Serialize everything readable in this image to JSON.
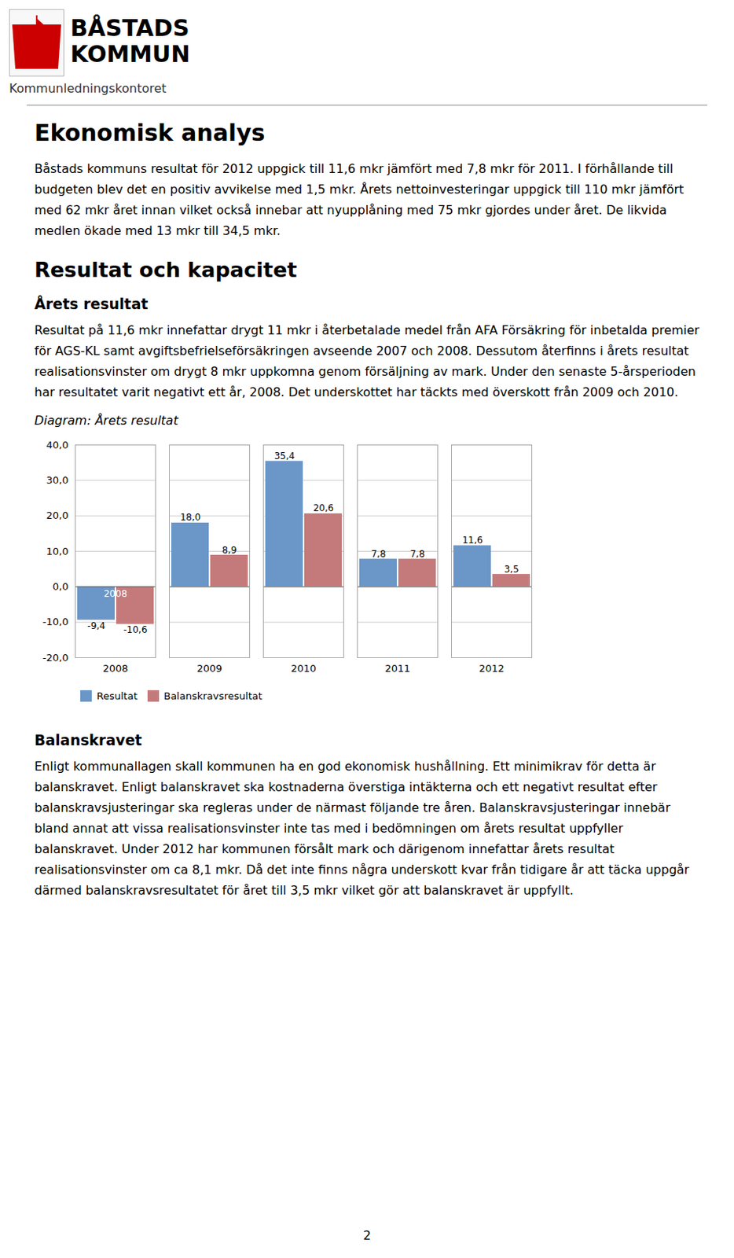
{
  "chart_data": {
    "type": "bar",
    "title": "Diagram: Årets resultat",
    "categories": [
      "2008",
      "2009",
      "2010",
      "2011",
      "2012"
    ],
    "series": [
      {
        "name": "Resultat",
        "color": "#6B96C8",
        "values": [
          -9.4,
          18.0,
          35.4,
          7.8,
          11.6
        ],
        "value_labels": [
          "-9,4",
          "18,0",
          "35,4",
          "7,8",
          "11,6"
        ]
      },
      {
        "name": "Balanskravsresultat",
        "color": "#C47A7A",
        "values": [
          -10.6,
          8.9,
          20.6,
          7.8,
          3.5
        ],
        "value_labels": [
          "-10,6",
          "8,9",
          "20,6",
          "7,8",
          "3,5"
        ]
      }
    ],
    "ylim": [
      -20,
      40
    ],
    "yticks": [
      {
        "value": -20,
        "label": "-20,0"
      },
      {
        "value": -10,
        "label": "-10,0"
      },
      {
        "value": 0,
        "label": "0,0"
      },
      {
        "value": 10,
        "label": "10,0"
      },
      {
        "value": 20,
        "label": "20,0"
      },
      {
        "value": 30,
        "label": "30,0"
      },
      {
        "value": 40,
        "label": "40,0"
      }
    ],
    "grid": true,
    "legend": "bottom",
    "data_labels": true,
    "annotations": [
      {
        "text": "BÅSTADS"
      },
      {
        "text": "KOMMUN"
      },
      {
        "text": "Kommunledningskontoret"
      },
      {
        "text": "Ekonomisk analys"
      },
      {
        "text": "Båstads kommuns resultat för 2012 uppgick till 11,6 mkr jämfört med 7,8 mkr för 2011. I förhållande till budgeten blev det en positiv avvikelse med 1,5 mkr. Årets nettoinvesteringar uppgick till 110 mkr jämfört med 62 mkr året innan vilket också innebar att nyupplåning med 75 mkr gjordes under året. De likvida medlen ökade med 13 mkr till 34,5 mkr."
      },
      {
        "text": "Resultat och kapacitet"
      },
      {
        "text": "Årets resultat"
      },
      {
        "text": "Resultat på 11,6 mkr innefattar drygt 11 mkr i återbetalade medel från AFA Försäkring för inbetalda premier för AGS-KL samt avgiftsbefrielseförsäkringen avseende 2007 och 2008. Dessutom återfinns i årets resultat realisationsvinster om drygt 8 mkr uppkomna genom försäljning av mark. Under den senaste 5-årsperioden har resultatet varit negativt ett år, 2008. Det underskottet har täckts med överskott från 2009 och 2010."
      },
      {
        "text": "Balanskravet"
      },
      {
        "text": "Enligt kommunallagen skall kommunen ha en god ekonomisk hushållning. Ett minimikrav för detta är balanskravet. Enligt balanskravet ska kostnaderna överstiga intäkterna och ett negativt resultat efter balanskravsjusteringar ska regleras under de närmast följande tre åren. Balanskravsjusteringar innebär bland annat att vissa realisationsvinster inte tas med i bedömningen om årets resultat uppfyller balanskravet. Under 2012 har kommunen försålt mark och därigenom innefattar årets resultat realisationsvinster om ca 8,1 mkr. Då det inte finns några underskott kvar från tidigare år att täcka uppgår därmed balanskravsresultatet för året till 3,5 mkr vilket gör att balanskravet är uppfyllt."
      },
      {
        "text": "2"
      },
      {
        "text": "2008",
        "x": "2008",
        "y": -1
      }
    ]
  }
}
